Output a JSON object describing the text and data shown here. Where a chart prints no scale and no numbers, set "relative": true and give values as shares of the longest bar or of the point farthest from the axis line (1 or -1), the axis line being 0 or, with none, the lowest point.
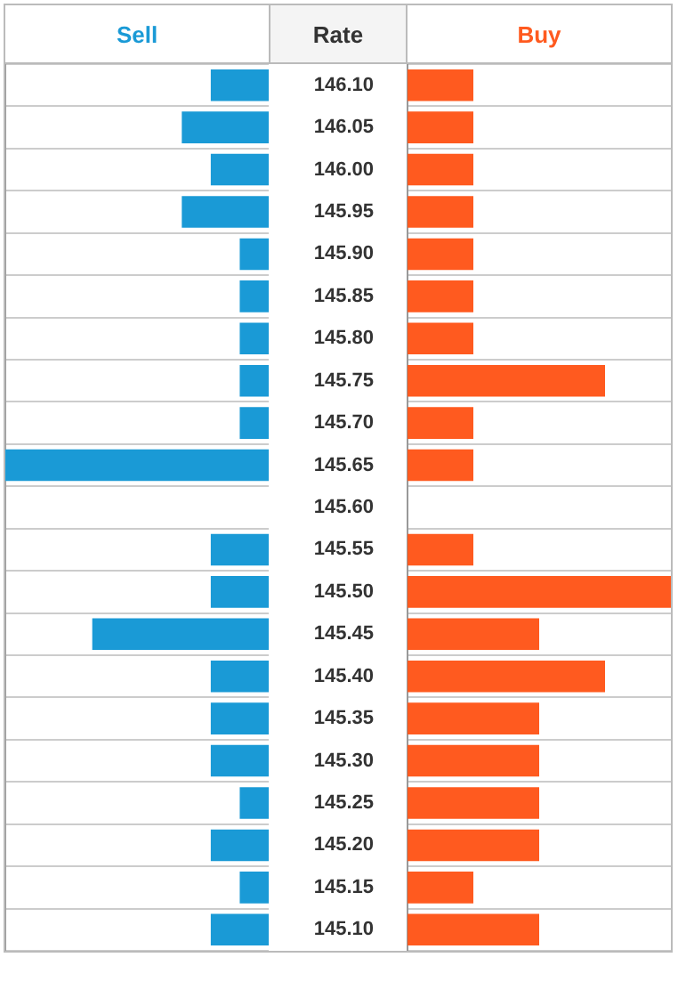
{
  "chart_data": [
    {
      "type": "bar",
      "orientation": "horizontal",
      "relative": true,
      "grid": "y",
      "tick_labels": false,
      "categories": [
        "146.10",
        "146.05",
        "146.00",
        "145.95",
        "145.90",
        "145.85",
        "145.80",
        "145.75",
        "145.70",
        "145.65",
        "145.60",
        "145.55",
        "145.50",
        "145.45",
        "145.40",
        "145.35",
        "145.30",
        "145.25",
        "145.20",
        "145.15",
        "145.10"
      ],
      "series": [
        {
          "name": "Sell",
          "color": "#1a9ad6",
          "values": [
            0.22,
            0.33,
            0.22,
            0.33,
            0.11,
            0.11,
            0.11,
            0.11,
            0.11,
            1,
            0,
            0.22,
            0.22,
            0.67,
            0.22,
            0.22,
            0.22,
            0.11,
            0.22,
            0.11,
            0.22
          ]
        }
      ]
    },
    {
      "type": "bar",
      "orientation": "horizontal",
      "relative": true,
      "grid": "y",
      "ylabel": "Rate",
      "categories": [
        "146.10",
        "146.05",
        "146.00",
        "145.95",
        "145.90",
        "145.85",
        "145.80",
        "145.75",
        "145.70",
        "145.65",
        "145.60",
        "145.55",
        "145.50",
        "145.45",
        "145.40",
        "145.35",
        "145.30",
        "145.25",
        "145.20",
        "145.15",
        "145.10"
      ],
      "series": [
        {
          "name": "Buy",
          "color": "#ff5a1f",
          "values": [
            0.25,
            0.25,
            0.25,
            0.25,
            0.25,
            0.25,
            0.25,
            0.75,
            0.25,
            0.25,
            0,
            0.25,
            1,
            0.5,
            0.75,
            0.5,
            0.5,
            0.5,
            0.5,
            0.25,
            0.5
          ]
        }
      ]
    }
  ]
}
